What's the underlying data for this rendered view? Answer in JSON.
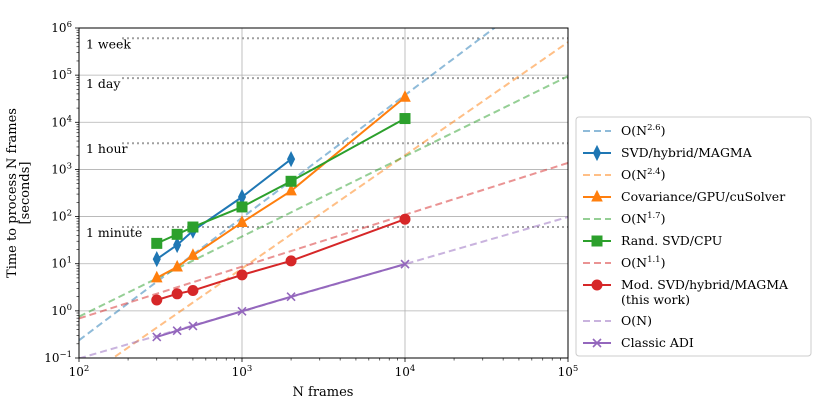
{
  "chart_data": {
    "type": "line",
    "xlabel": "N frames",
    "ylabel_line1": "Time to process N frames",
    "ylabel_line2": "[seconds]",
    "x_scale": "log",
    "y_scale": "log",
    "xlim": [
      100,
      100000
    ],
    "ylim": [
      0.1,
      1000000
    ],
    "grid": true,
    "legend_placement": "right",
    "x_ticks": [
      {
        "value": 100,
        "base": "10",
        "exp": "2"
      },
      {
        "value": 1000,
        "base": "10",
        "exp": "3"
      },
      {
        "value": 10000,
        "base": "10",
        "exp": "4"
      },
      {
        "value": 100000,
        "base": "10",
        "exp": "5"
      }
    ],
    "y_ticks": [
      {
        "value": 0.1,
        "base": "10",
        "exp": "−1"
      },
      {
        "value": 1,
        "base": "10",
        "exp": "0"
      },
      {
        "value": 10,
        "base": "10",
        "exp": "1"
      },
      {
        "value": 100,
        "base": "10",
        "exp": "2"
      },
      {
        "value": 1000,
        "base": "10",
        "exp": "3"
      },
      {
        "value": 10000,
        "base": "10",
        "exp": "4"
      },
      {
        "value": 100000,
        "base": "10",
        "exp": "5"
      },
      {
        "value": 1000000,
        "base": "10",
        "exp": "6"
      }
    ],
    "reference_lines": [
      {
        "label": "1 week",
        "value": 604800
      },
      {
        "label": "1 day",
        "value": 86400
      },
      {
        "label": "1 hour",
        "value": 3600
      },
      {
        "label": "1 minute",
        "value": 60
      }
    ],
    "trend_lines": [
      {
        "name": "O(N^2.6)",
        "base": "O(N",
        "exp": "2.6",
        "color": "#1f77b4",
        "coef": 1.5e-06,
        "power": 2.6
      },
      {
        "name": "O(N^2.4)",
        "base": "O(N",
        "exp": "2.4",
        "color": "#ff7f0e",
        "coef": 5e-07,
        "power": 2.4
      },
      {
        "name": "O(N^1.7)",
        "base": "O(N",
        "exp": "1.7",
        "color": "#2ca02c",
        "coef": 0.0003,
        "power": 1.7
      },
      {
        "name": "O(N^1.1)",
        "base": "O(N",
        "exp": "1.1",
        "color": "#d62728",
        "coef": 0.00435,
        "power": 1.1
      },
      {
        "name": "O(N)",
        "base": "O(N",
        "exp": "",
        "color": "#9467bd",
        "coef": 0.00098,
        "power": 1.0
      }
    ],
    "series": [
      {
        "name": "SVD/hybrid/MAGMA",
        "color": "#1f77b4",
        "marker": "diamond",
        "x": [
          300,
          400,
          500,
          1000,
          2000
        ],
        "y": [
          12.5,
          25,
          50,
          260,
          1650
        ]
      },
      {
        "name": "Covariance/GPU/cuSolver",
        "color": "#ff7f0e",
        "marker": "triangle",
        "x": [
          300,
          400,
          500,
          1000,
          2000,
          10000
        ],
        "y": [
          5,
          8.5,
          15,
          75,
          350,
          34000
        ]
      },
      {
        "name": "Rand. SVD/CPU",
        "color": "#2ca02c",
        "marker": "square",
        "x": [
          300,
          400,
          500,
          1000,
          2000,
          10000
        ],
        "y": [
          27,
          42,
          60,
          160,
          560,
          12000
        ]
      },
      {
        "name": "Mod. SVD/hybrid/MAGMA",
        "name_line2": "(this work)",
        "color": "#d62728",
        "marker": "circle",
        "x": [
          300,
          400,
          500,
          1000,
          2000,
          10000
        ],
        "y": [
          1.7,
          2.3,
          2.7,
          5.8,
          11.5,
          88
        ]
      },
      {
        "name": "Classic ADI",
        "color": "#9467bd",
        "marker": "x",
        "x": [
          300,
          400,
          500,
          1000,
          2000,
          10000
        ],
        "y": [
          0.28,
          0.38,
          0.48,
          0.98,
          2.0,
          9.8
        ]
      }
    ]
  }
}
